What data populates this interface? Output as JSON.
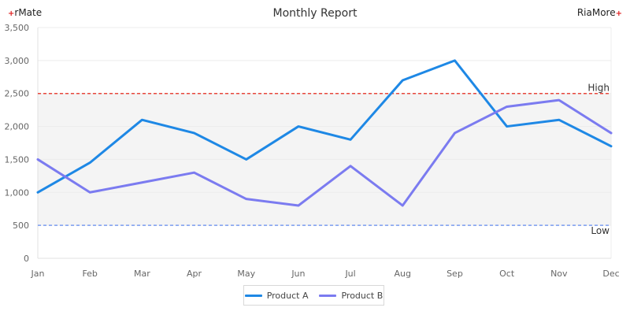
{
  "header": {
    "left_brand": "rMate",
    "right_brand": "RiaMore",
    "brand_mark": "+"
  },
  "chart_data": {
    "type": "line",
    "title": "Monthly Report",
    "xlabel": "",
    "ylabel": "",
    "categories": [
      "Jan",
      "Feb",
      "Mar",
      "Apr",
      "May",
      "Jun",
      "Jul",
      "Aug",
      "Sep",
      "Oct",
      "Nov",
      "Dec"
    ],
    "ylim": [
      0,
      3500
    ],
    "yticks": [
      0,
      500,
      1000,
      1500,
      2000,
      2500,
      3000,
      3500
    ],
    "ytick_labels": [
      "0",
      "500",
      "1,000",
      "1,500",
      "2,000",
      "2,500",
      "3,000",
      "3,500"
    ],
    "grid": true,
    "legend_position": "bottom",
    "series": [
      {
        "name": "Product A",
        "color": "#1e88e5",
        "values": [
          1000,
          1450,
          2100,
          1900,
          1500,
          2000,
          1800,
          2700,
          3000,
          2000,
          2100,
          1700
        ]
      },
      {
        "name": "Product B",
        "color": "#7b7bf0",
        "values": [
          1500,
          1000,
          1150,
          1300,
          900,
          800,
          1400,
          800,
          1900,
          2300,
          2400,
          1900
        ]
      }
    ],
    "reference_lines": [
      {
        "label": "High",
        "value": 2500,
        "color": "#e8473c",
        "style": "dashed"
      },
      {
        "label": "Low",
        "value": 500,
        "color": "#7a9cf0",
        "style": "dashed"
      }
    ],
    "band": {
      "from": 500,
      "to": 2500,
      "color": "#f4f4f4"
    }
  }
}
